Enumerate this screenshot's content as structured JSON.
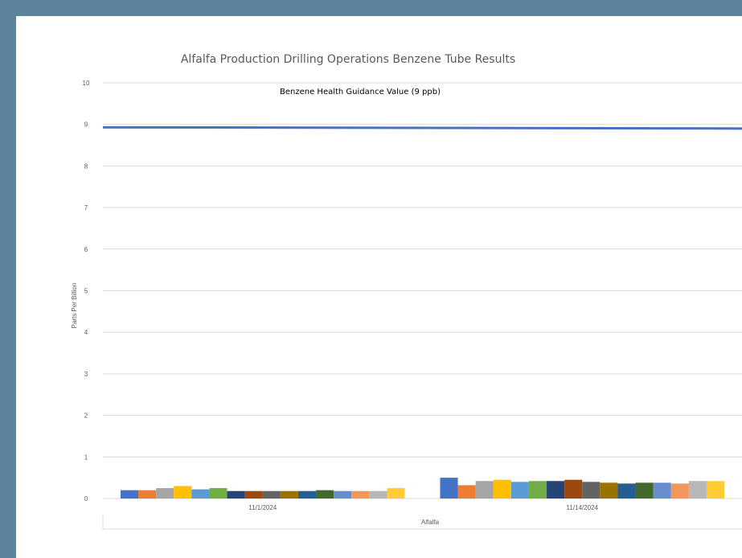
{
  "chart_data": {
    "type": "bar",
    "title": "Alfalfa Production Drilling Operations Benzene Tube Results",
    "ylabel": "Parts Per Billion",
    "xlabel": "Alfalfa",
    "ylim": [
      0,
      10
    ],
    "yticks": [
      "0",
      "1",
      "2",
      "3",
      "4",
      "5",
      "6",
      "7",
      "8",
      "9",
      "10"
    ],
    "categories": [
      "11/1/2024",
      "11/14/2024"
    ],
    "series_colors": [
      "#4472c4",
      "#ed7d31",
      "#a5a5a5",
      "#ffc000",
      "#5b9bd5",
      "#70ad47",
      "#264478",
      "#9e480e",
      "#636363",
      "#997300",
      "#255e91",
      "#43682b",
      "#698ed0",
      "#f1975a",
      "#b7b7b7",
      "#ffcd33"
    ],
    "groups": [
      [
        0.2,
        0.2,
        0.25,
        0.3,
        0.22,
        0.25,
        0.18,
        0.18,
        0.18,
        0.18,
        0.18,
        0.2,
        0.18,
        0.18,
        0.18,
        0.25
      ],
      [
        0.5,
        0.32,
        0.42,
        0.45,
        0.4,
        0.42,
        0.42,
        0.45,
        0.4,
        0.38,
        0.36,
        0.38,
        0.38,
        0.36,
        0.42,
        0.42
      ]
    ],
    "reference_line": {
      "value": 8.93,
      "label": "Benzene Health Guidance Value (9 ppb)",
      "color": "#4472c4"
    },
    "grid": true,
    "legend": "none"
  }
}
